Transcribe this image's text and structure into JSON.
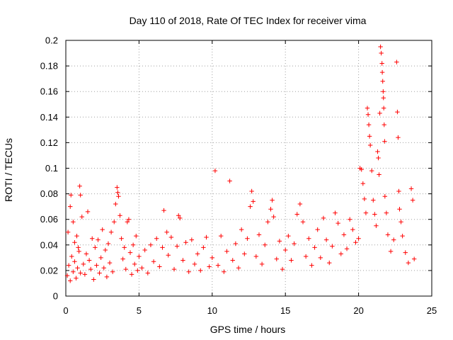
{
  "chart_data": {
    "type": "scatter",
    "title": "Day 110 of 2018, Rate Of TEC Index for receiver vima",
    "xlabel": "GPS time / hours",
    "ylabel": "ROTI / TECUs",
    "xlim": [
      0,
      25
    ],
    "ylim": [
      0,
      0.2
    ],
    "x_ticks": [
      0,
      5,
      10,
      15,
      20,
      25
    ],
    "x_tick_labels": [
      "0",
      "5",
      "10",
      "15",
      "20",
      "25"
    ],
    "y_ticks": [
      0,
      0.02,
      0.04,
      0.06,
      0.08,
      0.1,
      0.12,
      0.14,
      0.16,
      0.18,
      0.2
    ],
    "y_tick_labels": [
      "0",
      "0.02",
      "0.04",
      "0.06",
      "0.08",
      "0.1",
      "0.12",
      "0.14",
      "0.16",
      "0.18",
      "0.2"
    ],
    "grid": true,
    "marker": "plus",
    "series": [
      {
        "name": "ROTI",
        "color": "#ff0000",
        "points": [
          [
            0.1,
            0.016
          ],
          [
            0.2,
            0.024
          ],
          [
            0.3,
            0.012
          ],
          [
            0.4,
            0.031
          ],
          [
            0.5,
            0.019
          ],
          [
            0.6,
            0.027
          ],
          [
            0.7,
            0.014
          ],
          [
            0.8,
            0.022
          ],
          [
            0.9,
            0.035
          ],
          [
            1.0,
            0.018
          ],
          [
            0.15,
            0.05
          ],
          [
            0.3,
            0.07
          ],
          [
            0.35,
            0.079
          ],
          [
            0.5,
            0.058
          ],
          [
            0.6,
            0.042
          ],
          [
            0.75,
            0.047
          ],
          [
            0.85,
            0.038
          ],
          [
            0.95,
            0.086
          ],
          [
            1.0,
            0.079
          ],
          [
            1.1,
            0.062
          ],
          [
            1.2,
            0.025
          ],
          [
            1.3,
            0.017
          ],
          [
            1.4,
            0.033
          ],
          [
            1.5,
            0.066
          ],
          [
            1.6,
            0.028
          ],
          [
            1.7,
            0.021
          ],
          [
            1.8,
            0.045
          ],
          [
            1.9,
            0.013
          ],
          [
            2.0,
            0.038
          ],
          [
            2.1,
            0.024
          ],
          [
            2.2,
            0.044
          ],
          [
            2.3,
            0.018
          ],
          [
            2.4,
            0.03
          ],
          [
            2.5,
            0.052
          ],
          [
            2.6,
            0.022
          ],
          [
            2.7,
            0.036
          ],
          [
            2.8,
            0.015
          ],
          [
            2.9,
            0.041
          ],
          [
            3.0,
            0.026
          ],
          [
            3.1,
            0.05
          ],
          [
            3.2,
            0.019
          ],
          [
            3.3,
            0.058
          ],
          [
            3.4,
            0.072
          ],
          [
            3.5,
            0.085
          ],
          [
            3.55,
            0.081
          ],
          [
            3.6,
            0.078
          ],
          [
            3.7,
            0.063
          ],
          [
            3.8,
            0.045
          ],
          [
            3.9,
            0.029
          ],
          [
            4.0,
            0.038
          ],
          [
            4.1,
            0.021
          ],
          [
            4.2,
            0.058
          ],
          [
            4.3,
            0.06
          ],
          [
            4.4,
            0.034
          ],
          [
            4.5,
            0.017
          ],
          [
            4.6,
            0.04
          ],
          [
            4.7,
            0.025
          ],
          [
            4.8,
            0.047
          ],
          [
            4.9,
            0.02
          ],
          [
            5.0,
            0.031
          ],
          [
            5.2,
            0.022
          ],
          [
            5.4,
            0.036
          ],
          [
            5.6,
            0.018
          ],
          [
            5.8,
            0.04
          ],
          [
            6.0,
            0.027
          ],
          [
            6.2,
            0.045
          ],
          [
            6.4,
            0.023
          ],
          [
            6.6,
            0.038
          ],
          [
            6.7,
            0.067
          ],
          [
            6.9,
            0.05
          ],
          [
            7.0,
            0.032
          ],
          [
            7.2,
            0.046
          ],
          [
            7.4,
            0.021
          ],
          [
            7.6,
            0.039
          ],
          [
            7.7,
            0.063
          ],
          [
            7.8,
            0.061
          ],
          [
            8.0,
            0.028
          ],
          [
            8.2,
            0.042
          ],
          [
            8.4,
            0.019
          ],
          [
            8.6,
            0.044
          ],
          [
            8.8,
            0.025
          ],
          [
            9.0,
            0.033
          ],
          [
            9.2,
            0.02
          ],
          [
            9.4,
            0.038
          ],
          [
            9.6,
            0.046
          ],
          [
            9.8,
            0.023
          ],
          [
            10.0,
            0.03
          ],
          [
            10.2,
            0.098
          ],
          [
            10.4,
            0.024
          ],
          [
            10.6,
            0.047
          ],
          [
            10.8,
            0.019
          ],
          [
            11.0,
            0.035
          ],
          [
            11.2,
            0.09
          ],
          [
            11.4,
            0.028
          ],
          [
            11.6,
            0.041
          ],
          [
            11.8,
            0.022
          ],
          [
            12.0,
            0.052
          ],
          [
            12.2,
            0.033
          ],
          [
            12.4,
            0.045
          ],
          [
            12.6,
            0.07
          ],
          [
            12.7,
            0.082
          ],
          [
            12.8,
            0.074
          ],
          [
            13.0,
            0.031
          ],
          [
            13.2,
            0.048
          ],
          [
            13.4,
            0.025
          ],
          [
            13.6,
            0.04
          ],
          [
            13.8,
            0.058
          ],
          [
            14.0,
            0.068
          ],
          [
            14.1,
            0.075
          ],
          [
            14.2,
            0.062
          ],
          [
            14.4,
            0.029
          ],
          [
            14.6,
            0.043
          ],
          [
            14.8,
            0.021
          ],
          [
            15.0,
            0.036
          ],
          [
            15.2,
            0.047
          ],
          [
            15.4,
            0.028
          ],
          [
            15.6,
            0.041
          ],
          [
            15.8,
            0.064
          ],
          [
            16.0,
            0.072
          ],
          [
            16.2,
            0.058
          ],
          [
            16.4,
            0.031
          ],
          [
            16.6,
            0.045
          ],
          [
            16.8,
            0.024
          ],
          [
            17.0,
            0.038
          ],
          [
            17.2,
            0.052
          ],
          [
            17.4,
            0.03
          ],
          [
            17.6,
            0.061
          ],
          [
            17.8,
            0.044
          ],
          [
            18.0,
            0.026
          ],
          [
            18.2,
            0.039
          ],
          [
            18.4,
            0.065
          ],
          [
            18.6,
            0.057
          ],
          [
            18.8,
            0.033
          ],
          [
            19.0,
            0.048
          ],
          [
            19.2,
            0.037
          ],
          [
            19.4,
            0.06
          ],
          [
            19.6,
            0.052
          ],
          [
            19.8,
            0.042
          ],
          [
            20.0,
            0.045
          ],
          [
            20.1,
            0.1
          ],
          [
            20.2,
            0.099
          ],
          [
            20.3,
            0.088
          ],
          [
            20.4,
            0.076
          ],
          [
            20.5,
            0.065
          ],
          [
            20.6,
            0.147
          ],
          [
            20.65,
            0.142
          ],
          [
            20.7,
            0.134
          ],
          [
            20.75,
            0.125
          ],
          [
            20.8,
            0.118
          ],
          [
            20.9,
            0.098
          ],
          [
            21.0,
            0.075
          ],
          [
            21.1,
            0.064
          ],
          [
            21.2,
            0.055
          ],
          [
            21.3,
            0.113
          ],
          [
            21.35,
            0.108
          ],
          [
            21.4,
            0.095
          ],
          [
            21.45,
            0.143
          ],
          [
            21.5,
            0.195
          ],
          [
            21.55,
            0.19
          ],
          [
            21.6,
            0.182
          ],
          [
            21.62,
            0.175
          ],
          [
            21.65,
            0.168
          ],
          [
            21.68,
            0.16
          ],
          [
            21.7,
            0.155
          ],
          [
            21.72,
            0.147
          ],
          [
            21.75,
            0.134
          ],
          [
            21.78,
            0.121
          ],
          [
            21.8,
            0.078
          ],
          [
            21.9,
            0.065
          ],
          [
            22.0,
            0.048
          ],
          [
            22.2,
            0.035
          ],
          [
            22.4,
            0.044
          ],
          [
            22.6,
            0.183
          ],
          [
            22.65,
            0.144
          ],
          [
            22.7,
            0.124
          ],
          [
            22.75,
            0.082
          ],
          [
            22.8,
            0.068
          ],
          [
            22.9,
            0.058
          ],
          [
            23.0,
            0.047
          ],
          [
            23.2,
            0.034
          ],
          [
            23.4,
            0.026
          ],
          [
            23.6,
            0.084
          ],
          [
            23.7,
            0.075
          ],
          [
            23.8,
            0.029
          ]
        ]
      }
    ]
  }
}
